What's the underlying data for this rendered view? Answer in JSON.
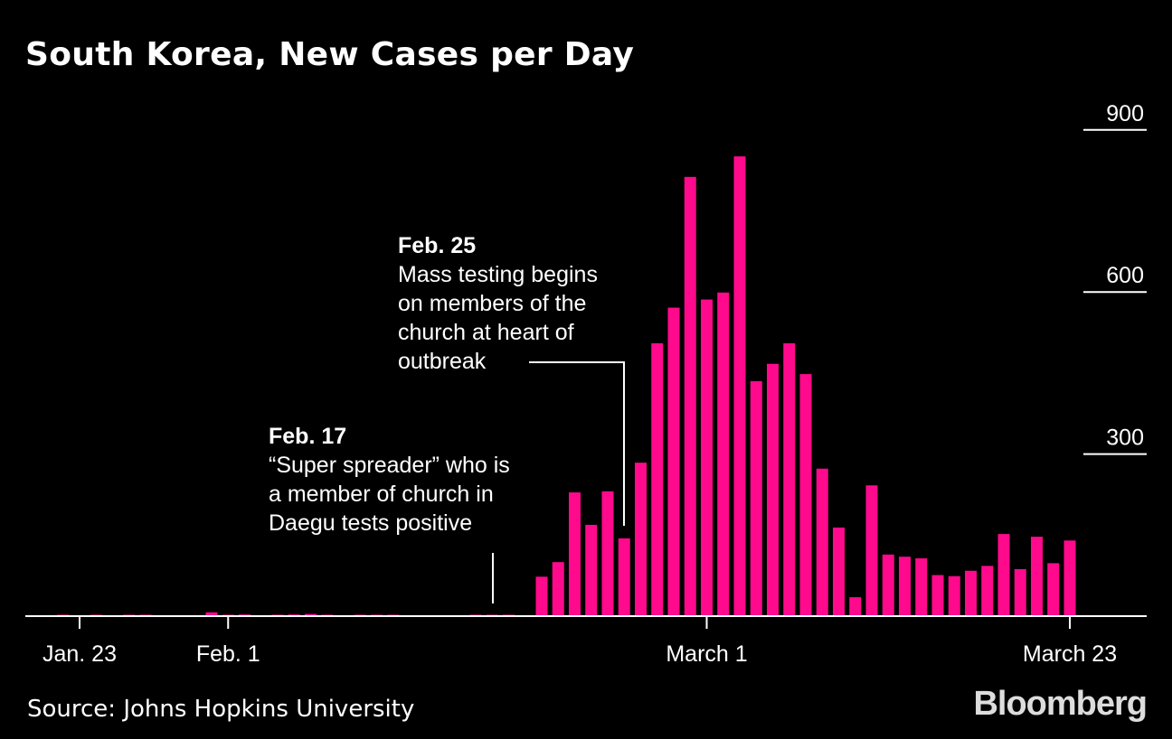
{
  "colors": {
    "bar": "#ff0a8c",
    "background": "#000000",
    "text": "#ffffff"
  },
  "chart_data": {
    "type": "bar",
    "title": "South Korea, New Cases per Day",
    "xlabel": "",
    "ylabel": "",
    "ylim": [
      0,
      900
    ],
    "grid": false,
    "y_ticks": [
      "300",
      "600",
      "900"
    ],
    "x_ticks": [
      {
        "label": "Jan. 23",
        "date": "2020-01-23"
      },
      {
        "label": "Feb. 1",
        "date": "2020-02-01"
      },
      {
        "label": "March 1",
        "date": "2020-03-01"
      },
      {
        "label": "March 23",
        "date": "2020-03-23"
      }
    ],
    "start_date": "2020-01-22",
    "dates_note": "",
    "values": [
      1,
      0,
      1,
      0,
      1,
      1,
      0,
      0,
      0,
      7,
      1,
      3,
      0,
      1,
      3,
      4,
      1,
      0,
      1,
      2,
      1,
      0,
      0,
      0,
      0,
      1,
      1,
      1,
      0,
      73,
      100,
      229,
      169,
      231,
      144,
      284,
      505,
      571,
      813,
      586,
      599,
      851,
      435,
      467,
      505,
      448,
      273,
      164,
      35,
      242,
      114,
      110,
      107,
      76,
      74,
      84,
      93,
      152,
      87,
      147,
      98,
      140
    ],
    "annotations": [
      {
        "date": "2020-02-17",
        "heading": "Feb. 17",
        "lines": [
          "“Super spreader” who is",
          "a member of church in",
          "Daegu tests positive"
        ]
      },
      {
        "date": "2020-02-25",
        "heading": "Feb. 25",
        "lines": [
          "Mass testing begins",
          "on members of the",
          "church at heart of",
          "outbreak"
        ]
      }
    ],
    "source": "Source: Johns Hopkins University"
  },
  "branding": {
    "logo": "Bloomberg"
  }
}
